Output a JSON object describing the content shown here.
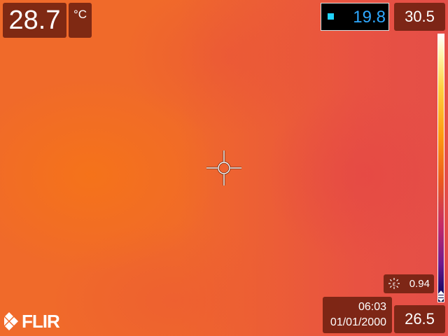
{
  "spot": {
    "temperature": "28.7",
    "unit": "°C"
  },
  "measurement": {
    "value": "19.8",
    "marker_color": "#21d4ff"
  },
  "scale": {
    "max": "30.5",
    "min": "26.5"
  },
  "emissivity": {
    "icon": "emissivity-icon",
    "value": "0.94"
  },
  "datetime": {
    "time": "06:03",
    "date": "01/01/2000"
  },
  "brand": {
    "logo_text": "FLIR"
  },
  "crosshair": {
    "icon": "crosshair-icon"
  }
}
